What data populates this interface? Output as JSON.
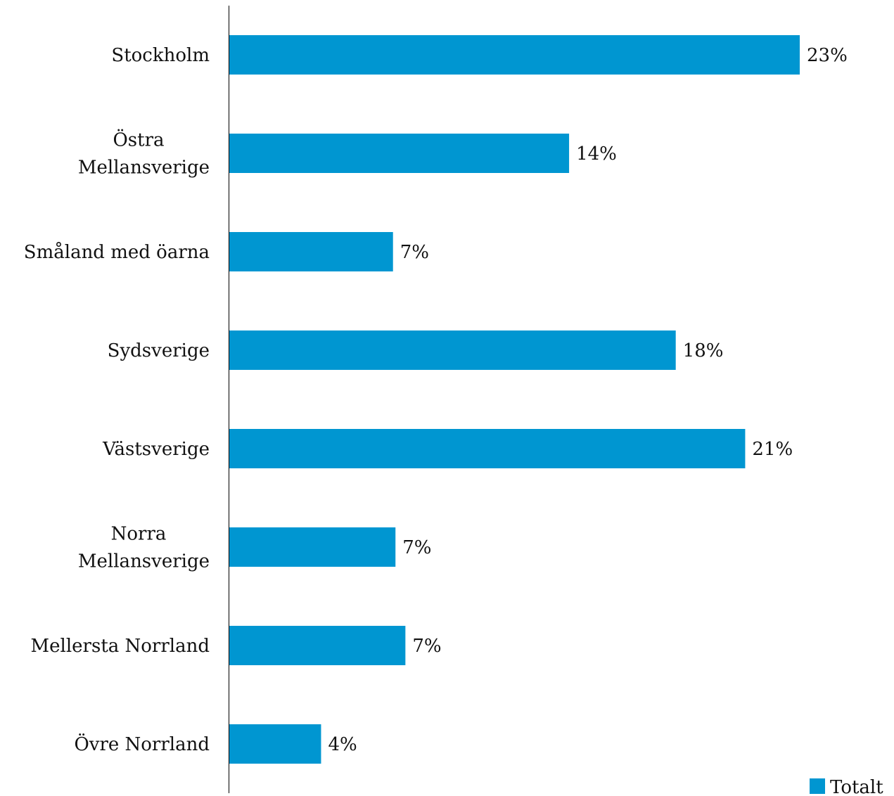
{
  "chart_data": {
    "type": "bar",
    "orientation": "horizontal",
    "categories": [
      "Stockholm",
      "Östra Mellansverige",
      "Småland med öarna",
      "Sydsverige",
      "Västsverige",
      "Norra Mellansverige",
      "Mellersta Norrland",
      "Övre Norrland"
    ],
    "category_lines": [
      [
        "Stockholm"
      ],
      [
        "Östra",
        "Mellansverige"
      ],
      [
        "Småland med öarna"
      ],
      [
        "Sydsverige"
      ],
      [
        "Västsverige"
      ],
      [
        "Norra",
        "Mellansverige"
      ],
      [
        "Mellersta Norrland"
      ],
      [
        "Övre Norrland"
      ]
    ],
    "series": [
      {
        "name": "Totalt",
        "color": "#0096D1",
        "values": [
          23,
          13.7,
          6.6,
          18,
          20.8,
          6.7,
          7.1,
          3.7
        ],
        "labels": [
          "23%",
          "14%",
          "7%",
          "18%",
          "21%",
          "7%",
          "7%",
          "4%"
        ]
      }
    ],
    "xlim": [
      0,
      23
    ],
    "grid": false,
    "legend": "bottom-right",
    "title": "",
    "xlabel": "",
    "ylabel": ""
  }
}
